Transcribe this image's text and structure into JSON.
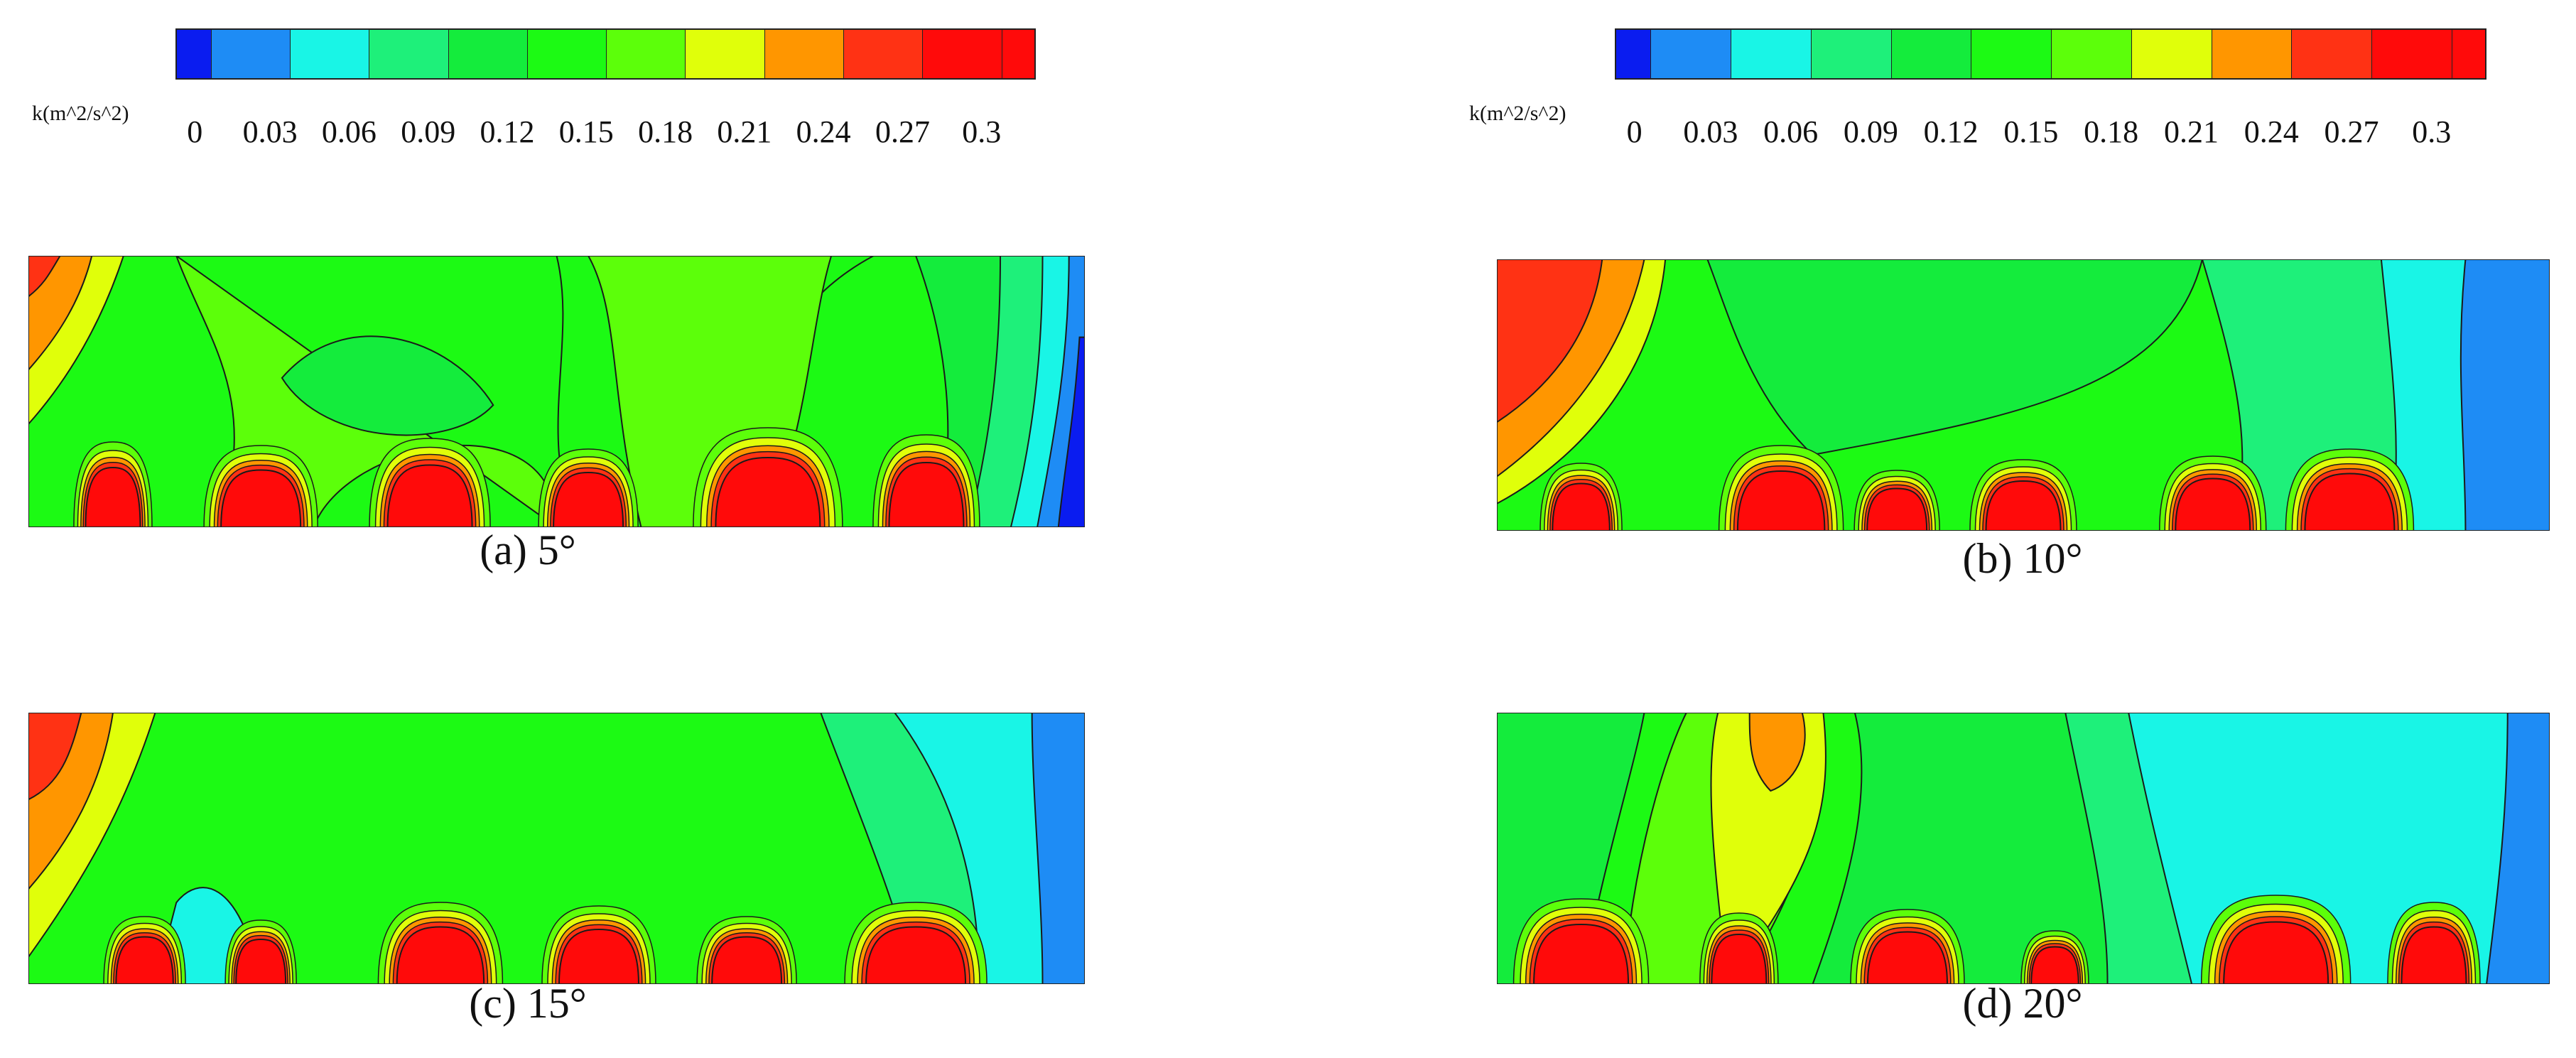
{
  "colorbars": [
    {
      "title": "k(m^2/s^2)",
      "tick_labels": [
        "0",
        "0.03",
        "0.06",
        "0.09",
        "0.12",
        "0.15",
        "0.18",
        "0.21",
        "0.24",
        "0.27",
        "0.3"
      ]
    },
    {
      "title": "k(m^2/s^2)",
      "tick_labels": [
        "0",
        "0.03",
        "0.06",
        "0.09",
        "0.12",
        "0.15",
        "0.18",
        "0.21",
        "0.24",
        "0.27",
        "0.3"
      ]
    }
  ],
  "chart_data": [
    {
      "type": "heatmap",
      "caption": "(a) 5°",
      "quantity": "k(m^2/s^2)",
      "colorscale_range": [
        0,
        0.3
      ],
      "contour_levels": [
        0,
        0.03,
        0.06,
        0.09,
        0.12,
        0.15,
        0.18,
        0.21,
        0.24,
        0.27,
        0.3
      ],
      "background_level": 0.18,
      "high_k_blobs": 6,
      "features": [
        "upper-left high k (0.24–0.3)",
        "right edge low k (0–0.09)",
        "red peaks above bottom bodies"
      ]
    },
    {
      "type": "heatmap",
      "caption": "(b) 10°",
      "quantity": "k(m^2/s^2)",
      "colorscale_range": [
        0,
        0.3
      ],
      "contour_levels": [
        0,
        0.03,
        0.06,
        0.09,
        0.12,
        0.15,
        0.18,
        0.21,
        0.24,
        0.27,
        0.3
      ],
      "background_level": 0.15,
      "high_k_blobs": 6,
      "features": [
        "upper-left high k (0.27–0.3)",
        "right region 0.06–0.09",
        "red peaks above bottom bodies"
      ]
    },
    {
      "type": "heatmap",
      "caption": "(c) 15°",
      "quantity": "k(m^2/s^2)",
      "colorscale_range": [
        0,
        0.3
      ],
      "contour_levels": [
        0,
        0.03,
        0.06,
        0.09,
        0.12,
        0.15,
        0.18,
        0.21,
        0.24,
        0.27,
        0.3
      ],
      "background_level": 0.15,
      "high_k_blobs": 6,
      "features": [
        "upper-left high k (0.27–0.3)",
        "right region 0.09–0.12",
        "red peaks above bottom bodies"
      ]
    },
    {
      "type": "heatmap",
      "caption": "(d) 20°",
      "quantity": "k(m^2/s^2)",
      "colorscale_range": [
        0,
        0.3
      ],
      "contour_levels": [
        0,
        0.03,
        0.06,
        0.09,
        0.12,
        0.15,
        0.18,
        0.21,
        0.24,
        0.27,
        0.3
      ],
      "background_level": 0.15,
      "high_k_blobs": 6,
      "features": [
        "upper-middle 0.24–0.27 region",
        "right region 0.09",
        "red peaks above bottom bodies"
      ]
    }
  ],
  "colors": {
    "k_0_003": "#0a1cf0",
    "k_003_006": "#0a3cf0",
    "k_006_009": "#1e8cf5",
    "k_009_012": "#19f5e6",
    "k_012_015": "#1ef07a",
    "k_015_018": "#14ec3c",
    "k_018_021": "#1cfa14",
    "k_021_024": "#5cff0a",
    "k_024_027": "#e0ff0a",
    "k_027_03": "#ff9600",
    "k_03_plus": "#ff3214",
    "k_max": "#ff0a0a",
    "contour_line": "#1a1a1a"
  }
}
